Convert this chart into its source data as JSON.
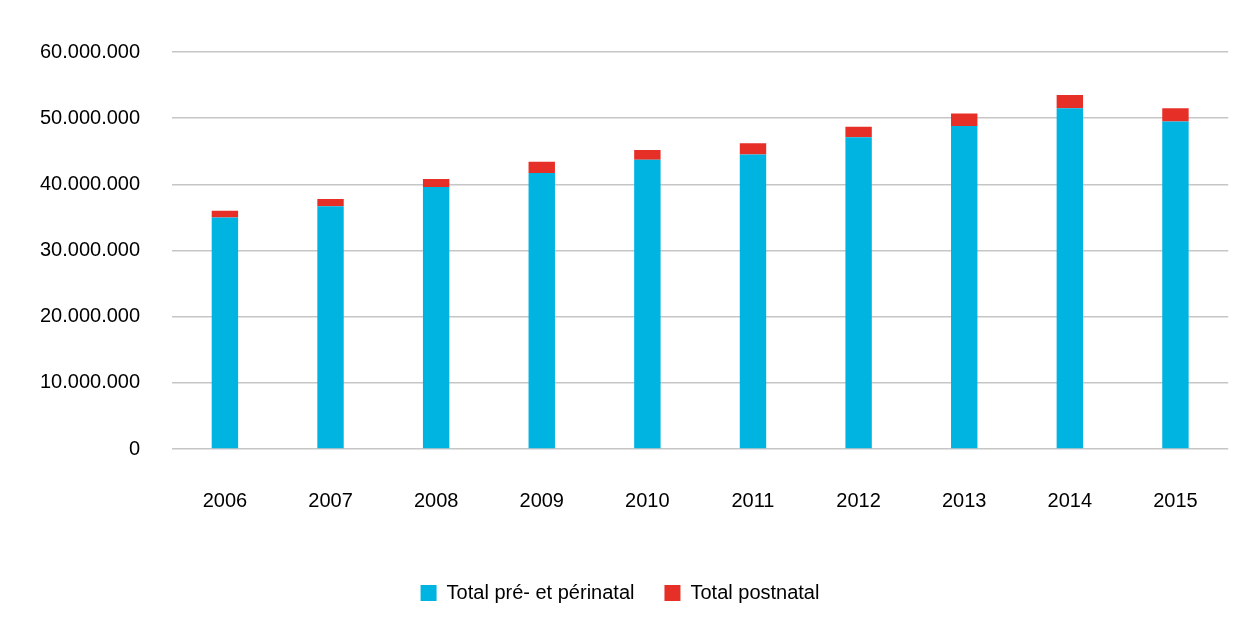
{
  "chart_data": {
    "type": "bar",
    "stacked": true,
    "categories": [
      "2006",
      "2007",
      "2008",
      "2009",
      "2010",
      "2011",
      "2012",
      "2013",
      "2014",
      "2015"
    ],
    "series": [
      {
        "name": "Total pré- et périnatal",
        "color": "#00b4e1",
        "values": [
          35000000,
          36700000,
          39600000,
          41700000,
          43700000,
          44500000,
          47100000,
          48800000,
          51500000,
          49500000
        ]
      },
      {
        "name": "Total postnatal",
        "color": "#e63027",
        "values": [
          1000000,
          1100000,
          1200000,
          1700000,
          1500000,
          1700000,
          1600000,
          1900000,
          2000000,
          2000000
        ]
      }
    ],
    "ylim": [
      0,
      60000000
    ],
    "yticks": [
      {
        "value": 0,
        "label": "0"
      },
      {
        "value": 10000000,
        "label": "10.000.000"
      },
      {
        "value": 20000000,
        "label": "20.000.000"
      },
      {
        "value": 30000000,
        "label": "30.000.000"
      },
      {
        "value": 40000000,
        "label": "40.000.000"
      },
      {
        "value": 50000000,
        "label": "50.000.000"
      },
      {
        "value": 60000000,
        "label": "60.000.000"
      }
    ],
    "grid": "y",
    "legend": "bottom"
  }
}
